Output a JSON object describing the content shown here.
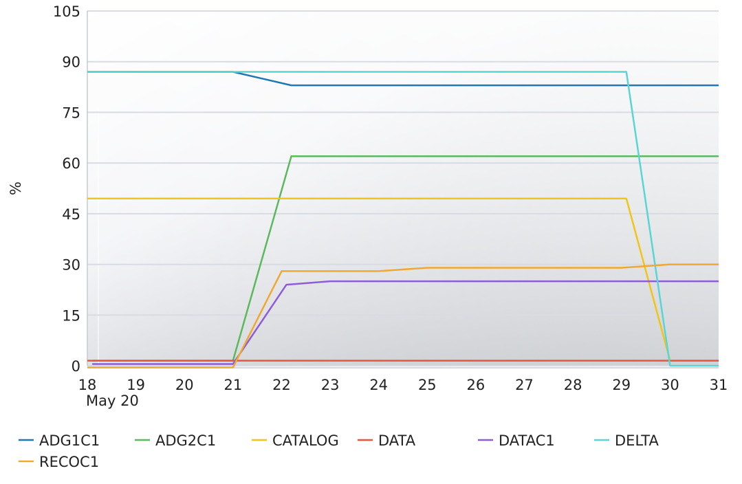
{
  "chart_data": {
    "type": "line",
    "title": "",
    "xlabel": "",
    "ylabel": "%",
    "x_ticks": [
      "18",
      "19",
      "20",
      "21",
      "22",
      "23",
      "24",
      "25",
      "26",
      "27",
      "28",
      "29",
      "30",
      "31"
    ],
    "x_sublabel": "May 20",
    "ylim": [
      0,
      105
    ],
    "y_ticks": [
      0,
      15,
      30,
      45,
      60,
      75,
      90,
      105
    ],
    "grid": true,
    "legend_position": "bottom",
    "series": [
      {
        "name": "ADG1C1",
        "color": "#1f77b4",
        "points": [
          [
            18.0,
            87
          ],
          [
            21.0,
            87
          ],
          [
            22.2,
            83
          ],
          [
            31.0,
            83
          ]
        ]
      },
      {
        "name": "ADG2C1",
        "color": "#5cb85c",
        "points": [
          [
            18.1,
            1.5
          ],
          [
            21.0,
            1.5
          ],
          [
            22.2,
            62
          ],
          [
            31.0,
            62
          ]
        ]
      },
      {
        "name": "CATALOG",
        "color": "#f0c419",
        "points": [
          [
            18.0,
            49.5
          ],
          [
            29.1,
            49.5
          ],
          [
            30.0,
            1.5
          ],
          [
            31.0,
            1.5
          ]
        ]
      },
      {
        "name": "DATA",
        "color": "#e8553a",
        "points": [
          [
            18.0,
            1.5
          ],
          [
            31.0,
            1.5
          ]
        ]
      },
      {
        "name": "DATAC1",
        "color": "#8e5cd6",
        "points": [
          [
            18.1,
            0.5
          ],
          [
            20.0,
            0.5
          ],
          [
            21.0,
            0.5
          ],
          [
            22.1,
            24
          ],
          [
            23.0,
            25
          ],
          [
            31.0,
            25
          ]
        ]
      },
      {
        "name": "DELTA",
        "color": "#5ad5d5",
        "points": [
          [
            18.0,
            87
          ],
          [
            29.1,
            87
          ],
          [
            30.0,
            0
          ],
          [
            31.0,
            0
          ]
        ]
      },
      {
        "name": "RECOC1",
        "color": "#f0a830",
        "points": [
          [
            18.0,
            -0.5
          ],
          [
            21.0,
            -0.5
          ],
          [
            22.0,
            28
          ],
          [
            24.0,
            28
          ],
          [
            25.0,
            29
          ],
          [
            29.0,
            29
          ],
          [
            30.0,
            30
          ],
          [
            31.0,
            30
          ]
        ]
      }
    ]
  }
}
